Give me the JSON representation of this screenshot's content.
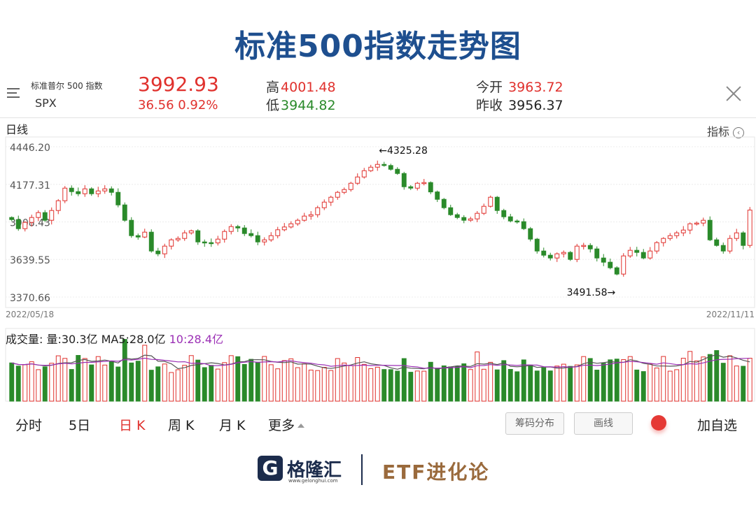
{
  "page": {
    "title": "标准500指数走势图"
  },
  "quote": {
    "name": "标准普尔 500 指数",
    "ticker": "SPX",
    "price": "3992.93",
    "change": "36.56  0.92%",
    "high_label": "高",
    "high": "4001.48",
    "low_label": "低",
    "low": "3944.82",
    "open_label": "今开",
    "open": "3963.72",
    "prev_close_label": "昨收",
    "prev_close": "3956.37"
  },
  "chart_header": {
    "period": "日线",
    "indicator_label": "指标"
  },
  "volume_header": {
    "label": "成交量: 量:30.3亿 MA5:28.0亿 ",
    "ma10": "10:28.4亿"
  },
  "tabs": [
    {
      "label": "分时"
    },
    {
      "label": "5日"
    },
    {
      "label": "日 K"
    },
    {
      "label": "周 K"
    },
    {
      "label": "月 K"
    },
    {
      "label": "更多"
    }
  ],
  "buttons": {
    "chips": "筹码分布",
    "draw": "画线",
    "add_fav": "加自选"
  },
  "footer": {
    "logo_letter": "G",
    "brand": "格隆汇",
    "url": "www.gelonghui.com",
    "etf": "ETF进化论"
  },
  "colors": {
    "up": "#e0312d",
    "down": "#2a8a2a",
    "title": "#1e4f8f",
    "ma5": "#555555",
    "ma10": "#9b2fb5"
  },
  "chart_data": {
    "type": "candlestick",
    "x_start": "2022/05/18",
    "x_end": "2022/11/11",
    "y_ticks": [
      "4446.20",
      "4177.31",
      "3908.43",
      "3639.55",
      "3370.66"
    ],
    "ylim": [
      3370.66,
      4446.2
    ],
    "annotations": [
      {
        "text": "←4325.28",
        "value": 4325.28,
        "index": 55
      },
      {
        "text": "3491.58→",
        "value": 3491.58,
        "index": 91
      }
    ],
    "closes": [
      3925,
      3860,
      3905,
      3940,
      3975,
      3920,
      3990,
      4060,
      4150,
      4125,
      4110,
      4145,
      4110,
      4130,
      4145,
      4120,
      4030,
      3920,
      3810,
      3800,
      3835,
      3700,
      3680,
      3735,
      3780,
      3790,
      3830,
      3845,
      3765,
      3760,
      3758,
      3785,
      3840,
      3875,
      3865,
      3825,
      3810,
      3765,
      3780,
      3810,
      3852,
      3872,
      3895,
      3920,
      3950,
      3960,
      4010,
      4050,
      4085,
      4120,
      4140,
      4185,
      4230,
      4275,
      4300,
      4320,
      4312,
      4285,
      4255,
      4160,
      4150,
      4185,
      4190,
      4123,
      4070,
      4010,
      3960,
      3940,
      3920,
      3930,
      3970,
      4020,
      4085,
      3990,
      3945,
      3915,
      3910,
      3860,
      3785,
      3700,
      3670,
      3650,
      3680,
      3690,
      3640,
      3735,
      3740,
      3715,
      3650,
      3620,
      3580,
      3535,
      3665,
      3705,
      3690,
      3650,
      3700,
      3760,
      3790,
      3810,
      3830,
      3850,
      3895,
      3900,
      3920,
      3780,
      3740,
      3700,
      3790,
      3830,
      3740,
      3993
    ]
  }
}
